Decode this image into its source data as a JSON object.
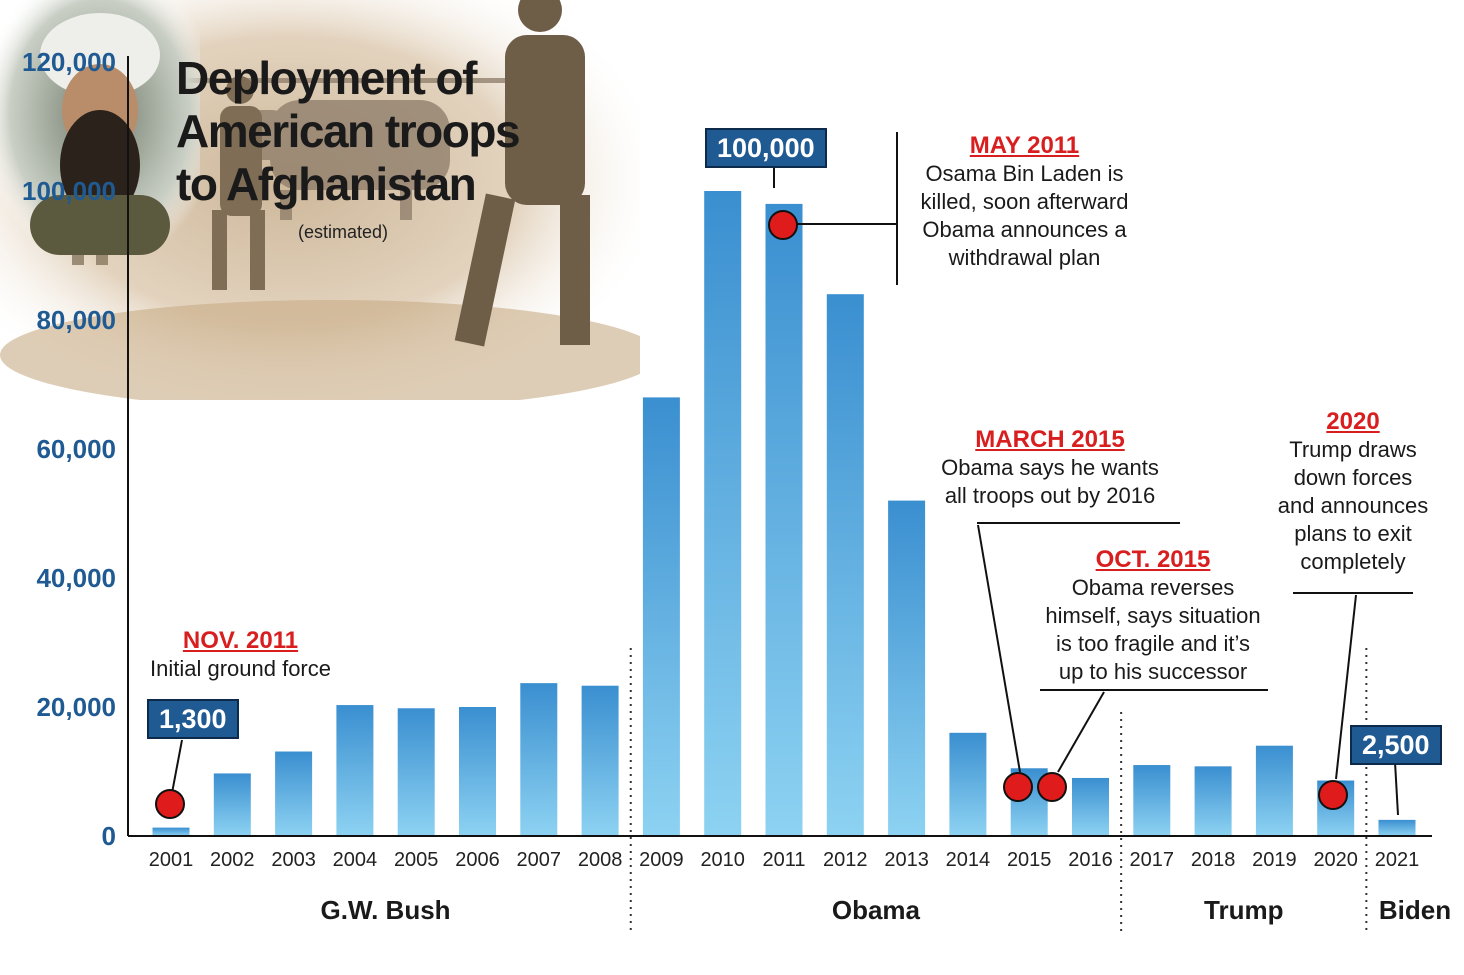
{
  "title_lines": [
    "Deployment of",
    "American troops",
    "to Afghanistan"
  ],
  "subtitle": "(estimated)",
  "colors": {
    "bar_top": "#3a8fd0",
    "bar_bottom": "#8dd2f2",
    "axis_text": "#1f5a92",
    "marker": "#e01b1b",
    "headline": "#d81e1e",
    "callout_bg": "#1f5a92"
  },
  "chart_data": {
    "type": "bar",
    "title": "Deployment of American troops to Afghanistan",
    "subtitle": "(estimated)",
    "categories": [
      "2001",
      "2002",
      "2003",
      "2004",
      "2005",
      "2006",
      "2007",
      "2008",
      "2009",
      "2010",
      "2011",
      "2012",
      "2013",
      "2014",
      "2015",
      "2016",
      "2017",
      "2018",
      "2019",
      "2020",
      "2021"
    ],
    "values": [
      1300,
      9700,
      13100,
      20300,
      19800,
      20000,
      23700,
      23300,
      68000,
      100000,
      98000,
      84000,
      52000,
      16000,
      10500,
      9000,
      11000,
      10800,
      14000,
      8600,
      2500
    ],
    "ylim": [
      0,
      120000
    ],
    "yticks": [
      0,
      20000,
      40000,
      60000,
      80000,
      100000,
      120000
    ],
    "ytick_labels": [
      "0",
      "20,000",
      "40,000",
      "60,000",
      "80,000",
      "100,000",
      "120,000"
    ],
    "grid": false,
    "eras": [
      {
        "label": "G.W. Bush",
        "from": "2001",
        "to": "2008"
      },
      {
        "label": "Obama",
        "from": "2009",
        "to": "2016"
      },
      {
        "label": "Trump",
        "from": "2017",
        "to": "2020"
      },
      {
        "label": "Biden",
        "from": "2021",
        "to": "2021"
      }
    ],
    "callouts": [
      {
        "category": "2001",
        "text": "1,300"
      },
      {
        "category": "2010",
        "text": "100,000"
      },
      {
        "category": "2021",
        "text": "2,500"
      }
    ],
    "markers": [
      "2001",
      "2011",
      "2015",
      "2015b",
      "2020"
    ],
    "annotations": [
      {
        "heading": "NOV. 2011",
        "text": "Initial ground force"
      },
      {
        "heading": "MAY 2011",
        "text": "Osama Bin Laden is\nkilled, soon afterward\nObama announces a\nwithdrawal plan"
      },
      {
        "heading": "MARCH 2015",
        "text": "Obama says he wants\nall troops out by 2016"
      },
      {
        "heading": "OCT. 2015",
        "text": "Obama reverses\nhimself, says situation\nis too fragile and it’s\nup to his successor"
      },
      {
        "heading": "2020",
        "text": "Trump draws\ndown forces\nand announces\nplans to exit\ncompletely"
      }
    ]
  },
  "images": {
    "photo": "soldiers-helicopter-photo",
    "portrait": "bin-laden-portrait-photo"
  }
}
